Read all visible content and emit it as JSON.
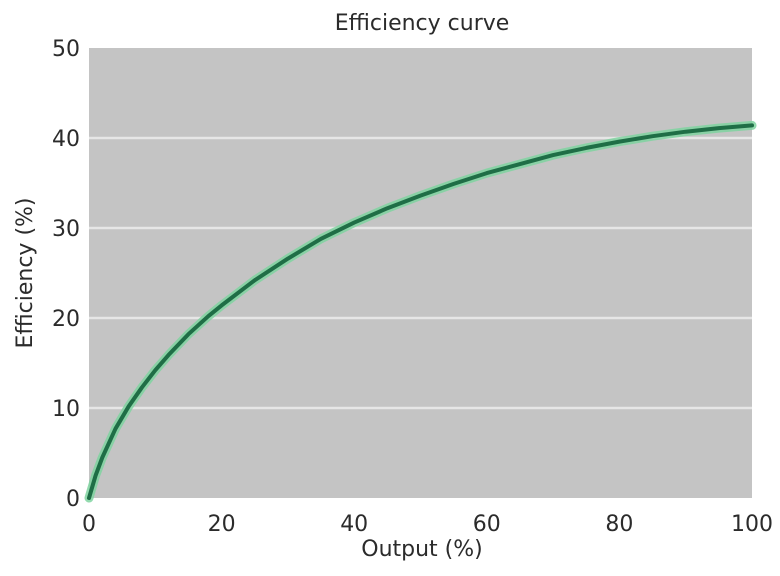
{
  "chart_data": {
    "type": "line",
    "title": "Efficiency curve",
    "xlabel": "Output (%)",
    "ylabel": "Efficiency (%)",
    "xlim": [
      0,
      100
    ],
    "ylim": [
      0,
      50
    ],
    "x_ticks": [
      0,
      20,
      40,
      60,
      80,
      100
    ],
    "y_ticks": [
      0,
      10,
      20,
      30,
      40,
      50
    ],
    "grid": "horizontal",
    "legend": "none",
    "colors": {
      "plot_background": "#c4c4c4",
      "grid": "#e6e6e6",
      "line": "#1f6e46",
      "line_glow": "#7fd3a0"
    },
    "series": [
      {
        "x": [
          0,
          1,
          2,
          4,
          6,
          8,
          10,
          12,
          15,
          18,
          20,
          25,
          30,
          35,
          40,
          45,
          50,
          55,
          60,
          65,
          70,
          75,
          80,
          85,
          90,
          95,
          100
        ],
        "y": [
          0,
          2.5,
          4.5,
          7.7,
          10.2,
          12.3,
          14.2,
          15.9,
          18.2,
          20.2,
          21.4,
          24.2,
          26.6,
          28.8,
          30.6,
          32.2,
          33.6,
          34.9,
          36.1,
          37.1,
          38.1,
          38.9,
          39.6,
          40.2,
          40.7,
          41.1,
          41.4
        ]
      }
    ]
  }
}
